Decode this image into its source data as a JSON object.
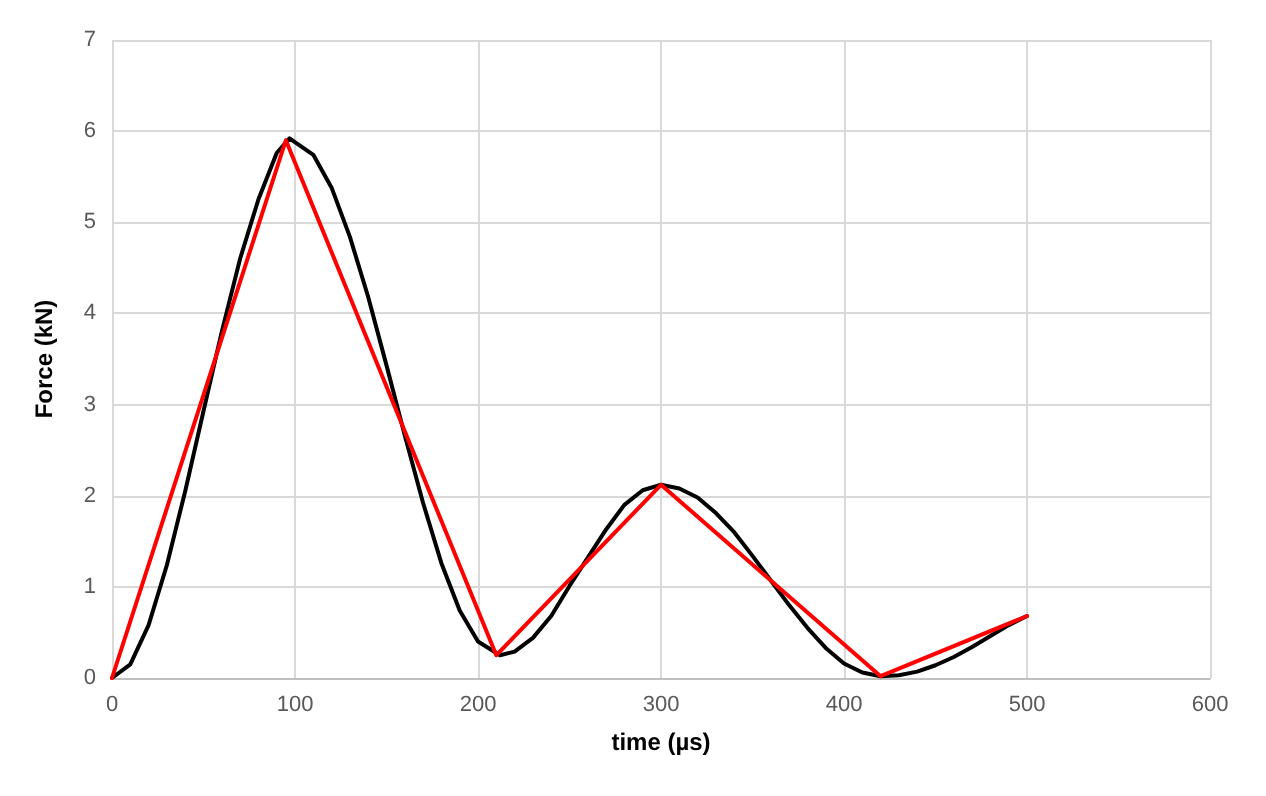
{
  "chart_data": {
    "type": "line",
    "xlabel": "time (µs)",
    "ylabel": "Force (kN)",
    "xlim": [
      0,
      600
    ],
    "xticks": [
      0,
      100,
      200,
      300,
      400,
      500,
      600
    ],
    "ylim": [
      0,
      7
    ],
    "yticks": [
      0,
      1,
      2,
      3,
      4,
      5,
      6,
      7
    ],
    "grid": true,
    "marker": "none",
    "line_style": "solid",
    "series": [
      {
        "color": "#000000",
        "x": [
          0,
          10,
          20,
          30,
          40,
          50,
          60,
          70,
          80,
          90,
          97,
          110,
          120,
          130,
          140,
          150,
          160,
          170,
          180,
          190,
          200,
          212,
          220,
          230,
          240,
          250,
          260,
          270,
          280,
          290,
          300,
          310,
          320,
          330,
          340,
          350,
          360,
          370,
          380,
          390,
          400,
          410,
          420,
          430,
          440,
          450,
          460,
          470,
          480,
          490,
          500
        ],
        "values": [
          0,
          0.15,
          0.58,
          1.24,
          2.05,
          2.93,
          3.8,
          4.6,
          5.25,
          5.76,
          5.92,
          5.74,
          5.38,
          4.84,
          4.18,
          3.43,
          2.66,
          1.92,
          1.26,
          0.74,
          0.4,
          0.25,
          0.29,
          0.44,
          0.68,
          1.01,
          1.32,
          1.63,
          1.9,
          2.06,
          2.12,
          2.08,
          1.98,
          1.81,
          1.6,
          1.34,
          1.07,
          0.8,
          0.55,
          0.33,
          0.16,
          0.06,
          0.02,
          0.03,
          0.07,
          0.14,
          0.23,
          0.34,
          0.46,
          0.58,
          0.68
        ]
      },
      {
        "color": "#ff0000",
        "x": [
          0,
          95,
          210,
          300,
          420,
          500
        ],
        "values": [
          0,
          5.9,
          0.25,
          2.12,
          0.02,
          0.68
        ]
      }
    ]
  }
}
